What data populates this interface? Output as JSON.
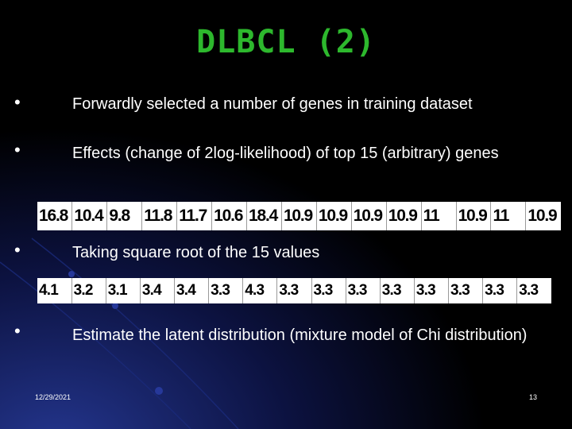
{
  "slide": {
    "title": "DLBCL (2)",
    "bullets": [
      "Forwardly selected a number of genes in training dataset",
      "Effects (change of 2log-likelihood) of top 15 (arbitrary) genes",
      "Taking square root of the 15 values",
      "Estimate the latent distribution (mixture model of Chi distribution)"
    ],
    "effects_row": [
      "16.8",
      "10.4",
      "9.8",
      "11.8",
      "11.7",
      "10.6",
      "18.4",
      "10.9",
      "10.9",
      "10.9",
      "10.9",
      "11",
      "10.9",
      "11",
      "10.9"
    ],
    "sqrt_row": [
      "4.1",
      "3.2",
      "3.1",
      "3.4",
      "3.4",
      "3.3",
      "4.3",
      "3.3",
      "3.3",
      "3.3",
      "3.3",
      "3.3",
      "3.3",
      "3.3",
      "3.3"
    ],
    "footer": {
      "date": "12/29/2021",
      "page": "13"
    },
    "colors": {
      "background": "#000000",
      "title": "#2db82d",
      "accent": "#1e2e8c"
    }
  }
}
